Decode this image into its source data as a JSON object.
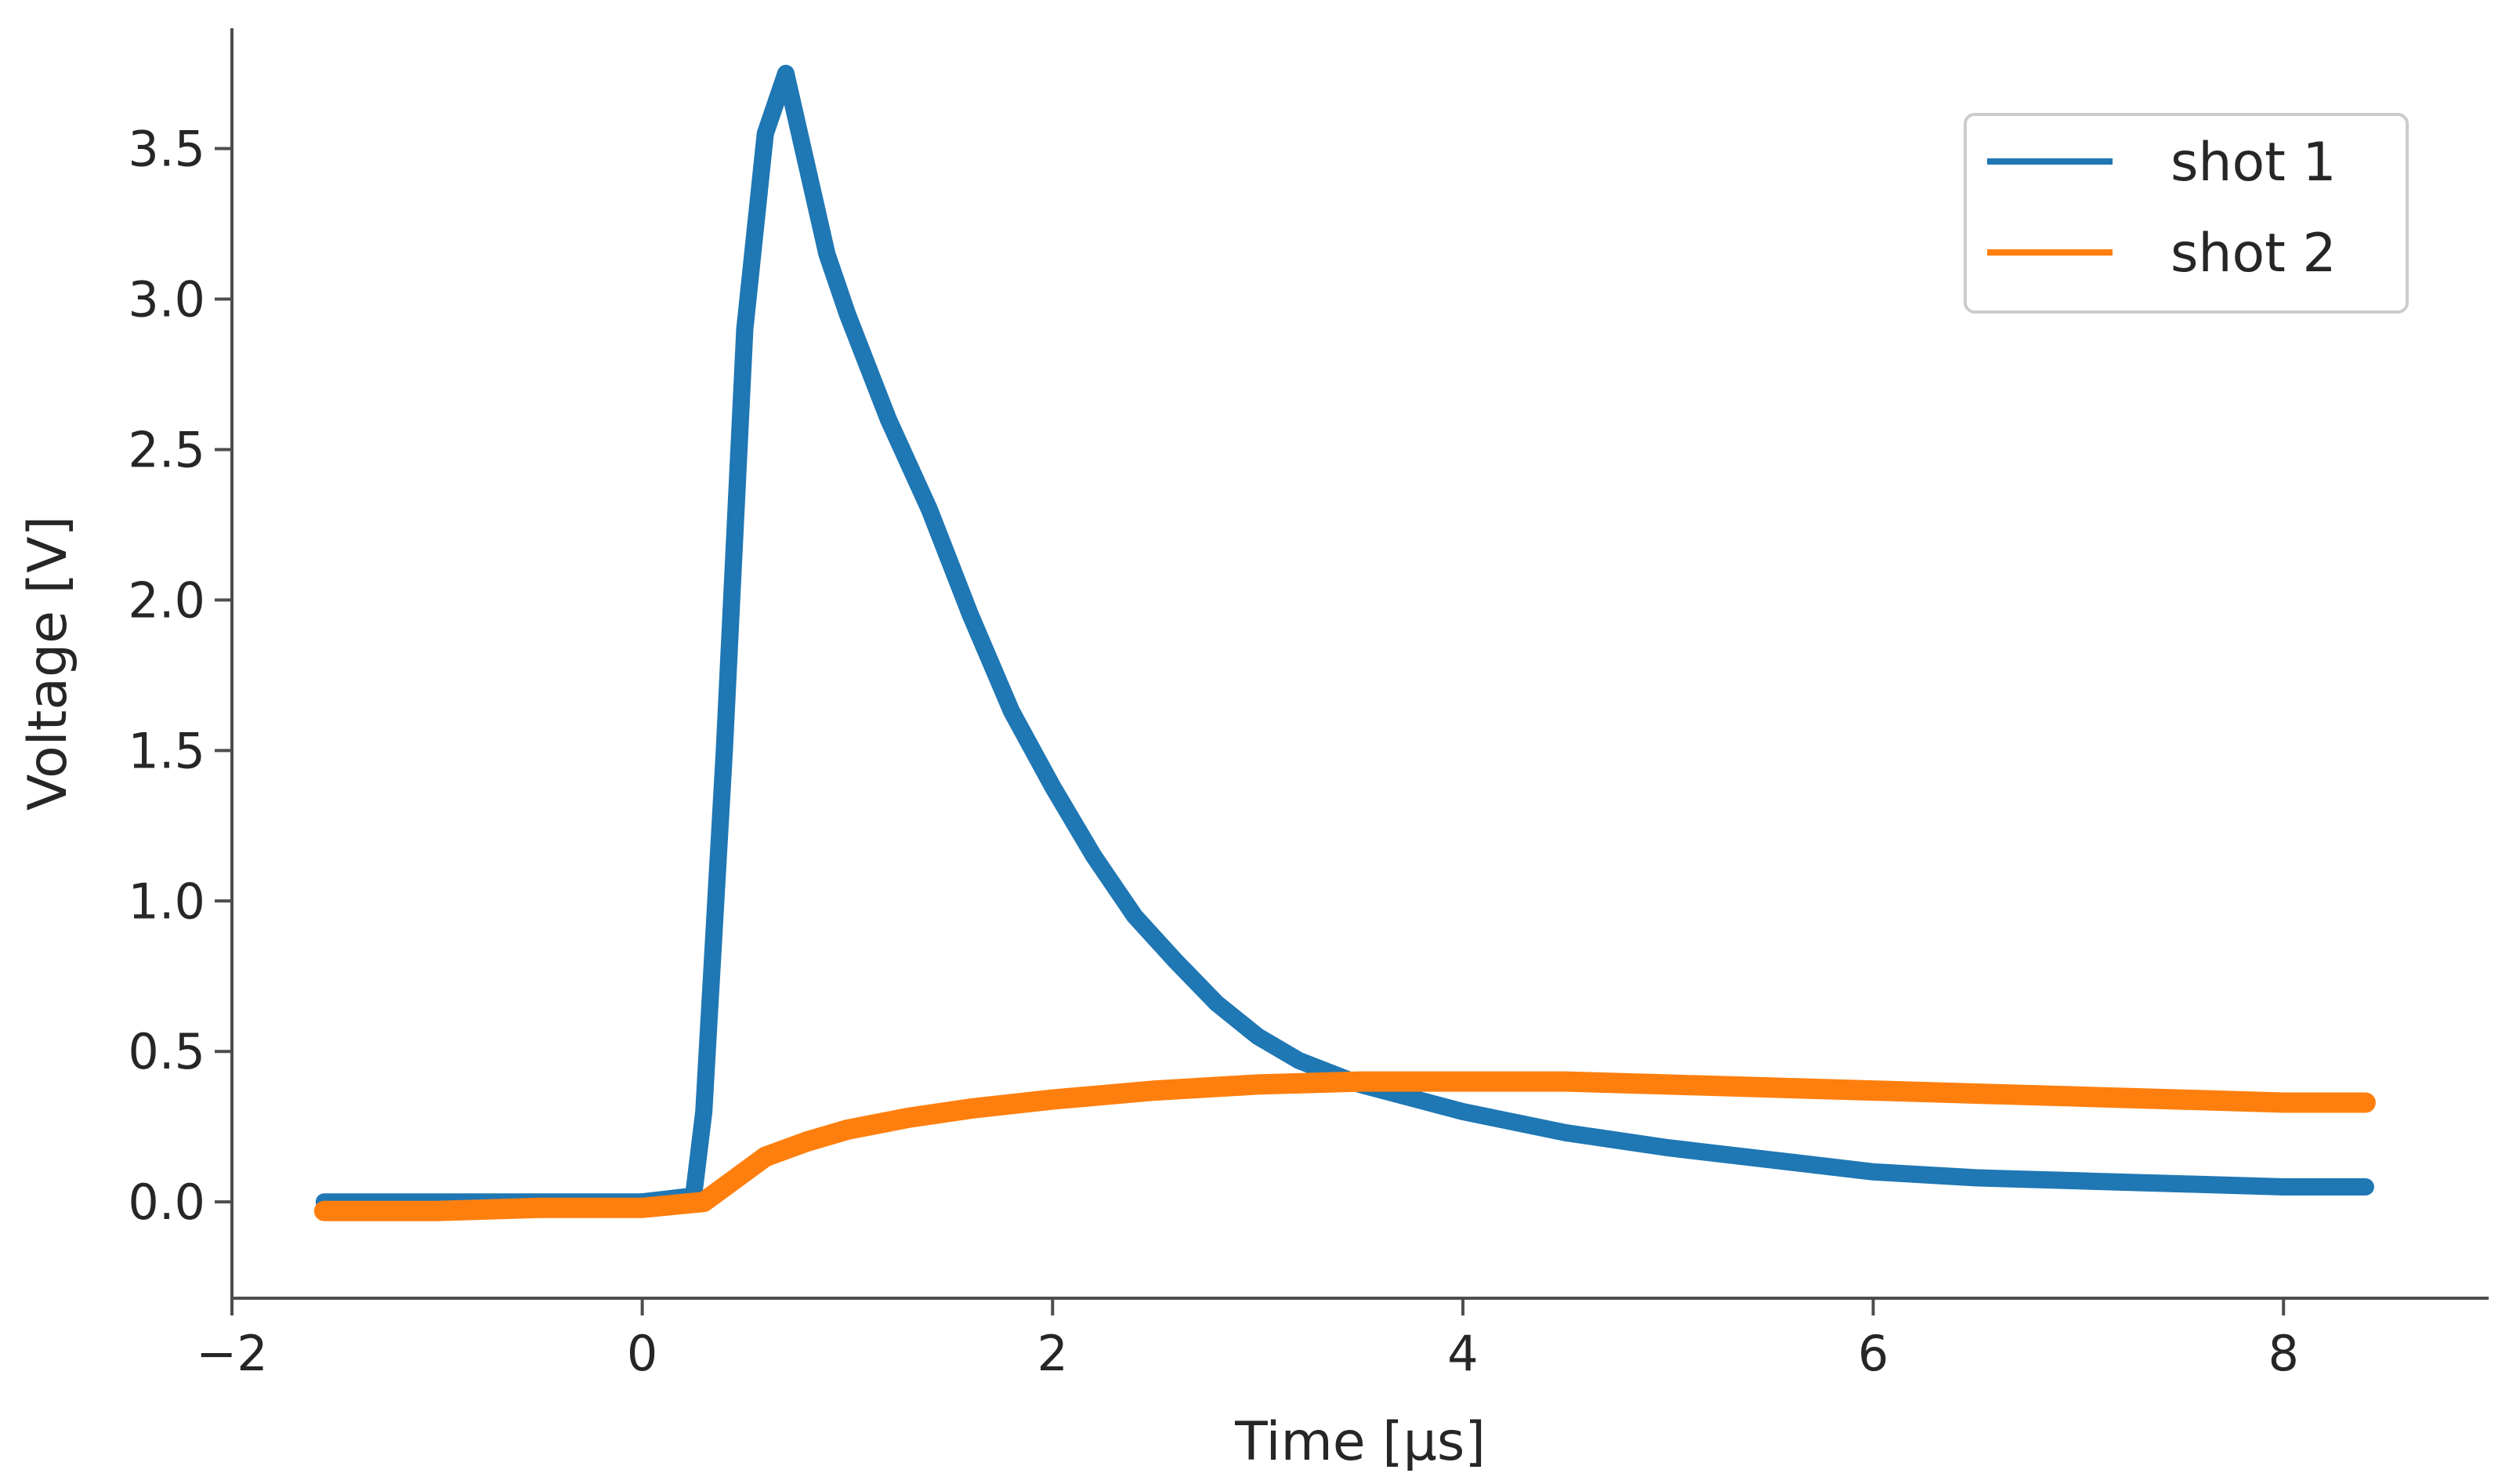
{
  "chart_data": {
    "type": "line",
    "title": "",
    "xlabel": "Time [μs]",
    "ylabel": "Voltage [V]",
    "xlim": [
      -2.0,
      9.0
    ],
    "ylim": [
      -0.32,
      3.9
    ],
    "x_ticks": [
      -2,
      0,
      2,
      4,
      6,
      8
    ],
    "x_tick_labels": [
      "−2",
      "0",
      "2",
      "4",
      "6",
      "8"
    ],
    "y_ticks": [
      0.0,
      0.5,
      1.0,
      1.5,
      2.0,
      2.5,
      3.0,
      3.5
    ],
    "y_tick_labels": [
      "0.0",
      "0.5",
      "1.0",
      "1.5",
      "2.0",
      "2.5",
      "3.0",
      "3.5"
    ],
    "grid": false,
    "legend_position": "top-right",
    "series": [
      {
        "name": "shot 1",
        "color": "#1f77b4",
        "x": [
          -1.55,
          -1.0,
          -0.5,
          0.0,
          0.25,
          0.3,
          0.4,
          0.5,
          0.6,
          0.7,
          0.8,
          0.9,
          1.0,
          1.2,
          1.4,
          1.6,
          1.8,
          2.0,
          2.2,
          2.4,
          2.6,
          2.8,
          3.0,
          3.2,
          3.5,
          4.0,
          4.5,
          5.0,
          5.5,
          6.0,
          6.5,
          7.0,
          7.5,
          8.0,
          8.4
        ],
        "y": [
          0.0,
          0.0,
          0.0,
          0.0,
          0.02,
          0.3,
          1.5,
          2.9,
          3.55,
          3.75,
          3.45,
          3.15,
          2.95,
          2.6,
          2.3,
          1.95,
          1.63,
          1.38,
          1.15,
          0.95,
          0.8,
          0.66,
          0.55,
          0.47,
          0.39,
          0.3,
          0.23,
          0.18,
          0.14,
          0.1,
          0.08,
          0.07,
          0.06,
          0.05,
          0.05
        ]
      },
      {
        "name": "shot 2",
        "color": "#ff7f0e",
        "x": [
          -1.55,
          -1.0,
          -0.5,
          0.0,
          0.3,
          0.4,
          0.5,
          0.6,
          0.8,
          1.0,
          1.3,
          1.6,
          2.0,
          2.5,
          3.0,
          3.5,
          4.0,
          4.5,
          5.0,
          5.5,
          6.0,
          6.5,
          7.0,
          7.5,
          8.0,
          8.4
        ],
        "y": [
          -0.03,
          -0.03,
          -0.02,
          -0.02,
          0.0,
          0.05,
          0.1,
          0.15,
          0.2,
          0.24,
          0.28,
          0.31,
          0.34,
          0.37,
          0.39,
          0.4,
          0.4,
          0.4,
          0.39,
          0.38,
          0.37,
          0.36,
          0.35,
          0.34,
          0.33,
          0.33
        ]
      }
    ]
  }
}
